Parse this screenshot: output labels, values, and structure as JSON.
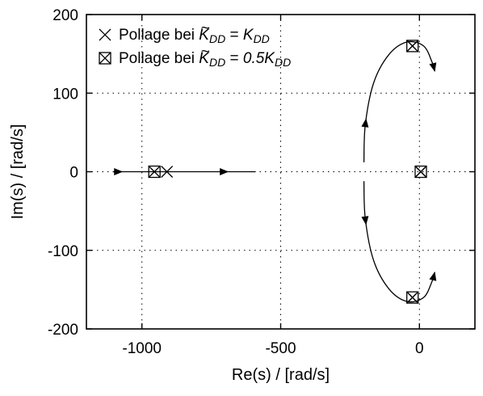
{
  "chart_data": {
    "type": "scatter",
    "xlabel": "Re(s) / [rad/s]",
    "ylabel": "Im(s) / [rad/s]",
    "xlim": [
      -1200,
      200
    ],
    "ylim": [
      -200,
      200
    ],
    "xticks": [
      {
        "value": -1000,
        "label": "-1000"
      },
      {
        "value": -500,
        "label": "-500"
      },
      {
        "value": 0,
        "label": "0"
      }
    ],
    "yticks": [
      {
        "value": 200,
        "label": "200"
      },
      {
        "value": 100,
        "label": "100"
      },
      {
        "value": 0,
        "label": "0"
      },
      {
        "value": -100,
        "label": "-100"
      },
      {
        "value": -200,
        "label": "-200"
      }
    ],
    "grid": true,
    "grid_style": "dotted",
    "legend_position": "top-left",
    "legend": [
      {
        "marker": "cross",
        "prefix": "Pollage bei ",
        "k_tilde": "K",
        "sub": "DD",
        "equals": " = ",
        "factor": "",
        "k": "K"
      },
      {
        "marker": "boxed-cross",
        "prefix": "Pollage bei ",
        "k_tilde": "K",
        "sub": "DD",
        "equals": " = ",
        "factor": "0.5",
        "k": "K"
      }
    ],
    "series": [
      {
        "marker": "cross",
        "points": [
          [
            -910,
            0
          ],
          [
            -25,
            160
          ],
          [
            -25,
            -160
          ],
          [
            5,
            0
          ]
        ]
      },
      {
        "marker": "boxed-cross",
        "points": [
          [
            -955,
            0
          ],
          [
            -25,
            160
          ],
          [
            -25,
            -160
          ],
          [
            5,
            0
          ]
        ]
      }
    ],
    "trajectories": [
      {
        "kind": "line",
        "points": [
          [
            -1105,
            0
          ],
          [
            -590,
            0
          ]
        ],
        "arrows": [
          0.04,
          0.78
        ]
      },
      {
        "kind": "arc",
        "points": [
          [
            -200,
            12
          ],
          [
            -195,
            60
          ],
          [
            -165,
            113
          ],
          [
            -110,
            149
          ],
          [
            -45,
            165
          ],
          [
            15,
            160
          ],
          [
            45,
            140
          ],
          [
            55,
            128
          ]
        ],
        "arrows": [
          0.22,
          0.98
        ]
      },
      {
        "kind": "arc",
        "points": [
          [
            -200,
            -12
          ],
          [
            -195,
            -60
          ],
          [
            -165,
            -113
          ],
          [
            -110,
            -149
          ],
          [
            -45,
            -165
          ],
          [
            15,
            -160
          ],
          [
            45,
            -140
          ],
          [
            55,
            -128
          ]
        ],
        "arrows": [
          0.22,
          0.98
        ]
      }
    ]
  }
}
